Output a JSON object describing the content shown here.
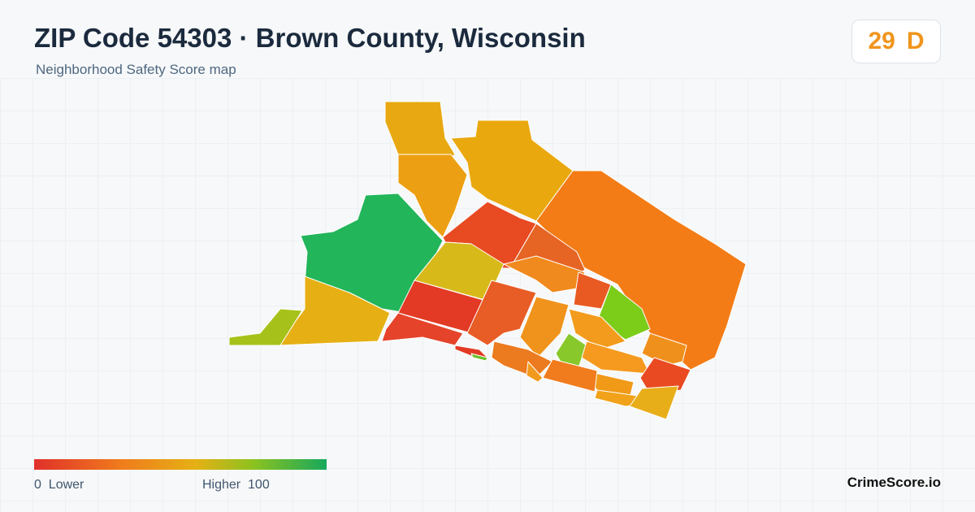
{
  "header": {
    "title": "ZIP Code 54303 · Brown County, Wisconsin",
    "subtitle": "Neighborhood Safety Score map",
    "score": 29,
    "grade": "D"
  },
  "legend": {
    "min": 0,
    "low_label": "Lower",
    "high_label": "Higher",
    "max": 100
  },
  "footer": {
    "brand": "CrimeScore.io"
  }
}
